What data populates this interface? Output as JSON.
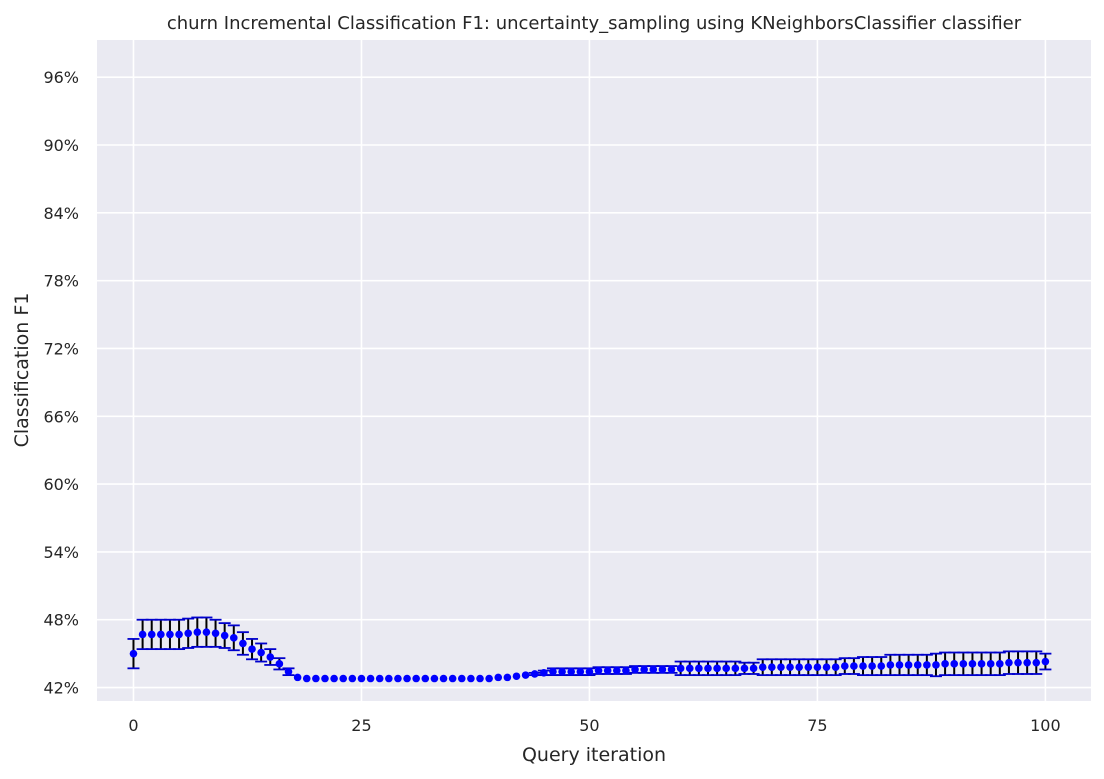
{
  "chart_data": {
    "type": "scatter",
    "title": "churn Incremental Classification F1: uncertainty_sampling using KNeighborsClassifier classifier",
    "xlabel": "Query iteration",
    "ylabel": "Classification F1",
    "xlim": [
      -4,
      105
    ],
    "ylim": [
      0.4081,
      0.9929
    ],
    "xticks": [
      0,
      25,
      50,
      75,
      100
    ],
    "xtick_labels": [
      "0",
      "25",
      "50",
      "75",
      "100"
    ],
    "yticks": [
      0.42,
      0.48,
      0.54,
      0.6,
      0.66,
      0.72,
      0.78,
      0.84,
      0.9,
      0.96
    ],
    "ytick_labels": [
      "42%",
      "48%",
      "54%",
      "60%",
      "66%",
      "72%",
      "78%",
      "84%",
      "90%",
      "96%"
    ],
    "grid": true,
    "background": "#eaeaf2",
    "grid_color": "#ffffff",
    "marker_color": "#0000ff",
    "errorbar_color": "#000000",
    "cap_color": "#0000cd",
    "series": [
      {
        "x": [
          0,
          1,
          2,
          3,
          4,
          5,
          6,
          7,
          8,
          9,
          10,
          11,
          12,
          13,
          14,
          15,
          16,
          17,
          18,
          19,
          20,
          21,
          22,
          23,
          24,
          25,
          26,
          27,
          28,
          29,
          30,
          31,
          32,
          33,
          34,
          35,
          36,
          37,
          38,
          39,
          40,
          41,
          42,
          43,
          44,
          45,
          46,
          47,
          48,
          49,
          50,
          51,
          52,
          53,
          54,
          55,
          56,
          57,
          58,
          59,
          60,
          61,
          62,
          63,
          64,
          65,
          66,
          67,
          68,
          69,
          70,
          71,
          72,
          73,
          74,
          75,
          76,
          77,
          78,
          79,
          80,
          81,
          82,
          83,
          84,
          85,
          86,
          87,
          88,
          89,
          90,
          91,
          92,
          93,
          94,
          95,
          96,
          97,
          98,
          99,
          100
        ],
        "y": [
          0.45,
          0.467,
          0.467,
          0.467,
          0.467,
          0.467,
          0.468,
          0.469,
          0.469,
          0.468,
          0.466,
          0.464,
          0.459,
          0.454,
          0.451,
          0.447,
          0.441,
          0.434,
          0.429,
          0.428,
          0.428,
          0.428,
          0.428,
          0.428,
          0.428,
          0.428,
          0.428,
          0.428,
          0.428,
          0.428,
          0.428,
          0.428,
          0.428,
          0.428,
          0.428,
          0.428,
          0.428,
          0.428,
          0.428,
          0.428,
          0.429,
          0.429,
          0.43,
          0.431,
          0.432,
          0.433,
          0.434,
          0.434,
          0.434,
          0.434,
          0.434,
          0.435,
          0.435,
          0.435,
          0.435,
          0.436,
          0.436,
          0.436,
          0.436,
          0.436,
          0.437,
          0.437,
          0.437,
          0.437,
          0.437,
          0.437,
          0.437,
          0.437,
          0.437,
          0.438,
          0.438,
          0.438,
          0.438,
          0.438,
          0.438,
          0.438,
          0.438,
          0.438,
          0.439,
          0.439,
          0.439,
          0.439,
          0.439,
          0.44,
          0.44,
          0.44,
          0.44,
          0.44,
          0.44,
          0.441,
          0.441,
          0.441,
          0.441,
          0.441,
          0.441,
          0.441,
          0.442,
          0.442,
          0.442,
          0.442,
          0.443
        ],
        "err": [
          0.013,
          0.013,
          0.013,
          0.013,
          0.013,
          0.013,
          0.013,
          0.013,
          0.013,
          0.012,
          0.011,
          0.011,
          0.01,
          0.009,
          0.008,
          0.007,
          0.005,
          0.003,
          0,
          0,
          0,
          0,
          0,
          0,
          0,
          0,
          0,
          0,
          0,
          0,
          0,
          0,
          0,
          0,
          0,
          0,
          0,
          0,
          0,
          0,
          0,
          0,
          0,
          0,
          0.001,
          0.002,
          0.003,
          0.003,
          0.003,
          0.003,
          0.003,
          0.003,
          0.003,
          0.003,
          0.003,
          0.003,
          0.003,
          0.003,
          0.003,
          0.003,
          0.006,
          0.006,
          0.006,
          0.006,
          0.006,
          0.006,
          0.006,
          0.005,
          0.005,
          0.007,
          0.007,
          0.007,
          0.007,
          0.007,
          0.007,
          0.007,
          0.007,
          0.007,
          0.007,
          0.007,
          0.008,
          0.008,
          0.008,
          0.009,
          0.009,
          0.009,
          0.009,
          0.009,
          0.01,
          0.01,
          0.01,
          0.01,
          0.01,
          0.01,
          0.01,
          0.01,
          0.01,
          0.01,
          0.01,
          0.01,
          0.007
        ]
      }
    ]
  }
}
